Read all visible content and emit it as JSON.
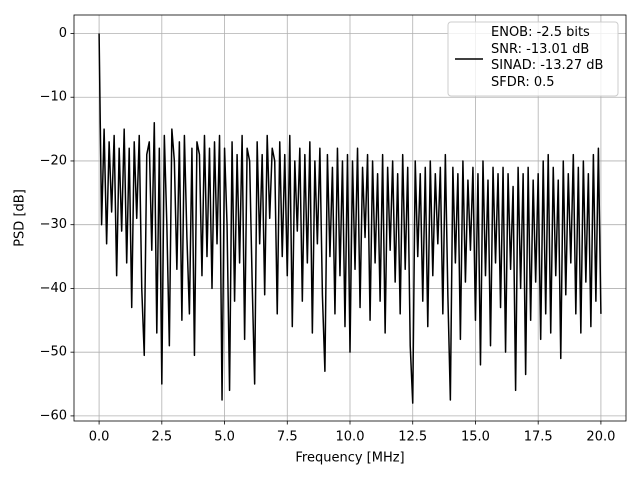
{
  "chart_data": {
    "type": "line",
    "xlabel": "Frequency [MHz]",
    "ylabel": "PSD [dB]",
    "x": [
      0,
      0.1,
      0.2,
      0.3,
      0.4,
      0.5,
      0.6,
      0.7,
      0.8,
      0.9,
      1,
      1.1,
      1.2,
      1.3,
      1.4,
      1.5,
      1.6,
      1.7,
      1.8,
      1.9,
      2,
      2.1,
      2.2,
      2.3,
      2.4,
      2.5,
      2.6,
      2.7,
      2.8,
      2.9,
      3,
      3.1,
      3.2,
      3.3,
      3.4,
      3.5,
      3.6,
      3.7,
      3.8,
      3.9,
      4,
      4.1,
      4.2,
      4.3,
      4.4,
      4.5,
      4.6,
      4.7,
      4.8,
      4.9,
      5,
      5.1,
      5.2,
      5.3,
      5.4,
      5.5,
      5.6,
      5.7,
      5.8,
      5.9,
      6,
      6.1,
      6.2,
      6.3,
      6.4,
      6.5,
      6.6,
      6.7,
      6.8,
      6.9,
      7,
      7.1,
      7.2,
      7.3,
      7.4,
      7.5,
      7.6,
      7.7,
      7.8,
      7.9,
      8,
      8.1,
      8.2,
      8.3,
      8.4,
      8.5,
      8.6,
      8.7,
      8.8,
      8.9,
      9,
      9.1,
      9.2,
      9.3,
      9.4,
      9.5,
      9.6,
      9.7,
      9.8,
      9.9,
      10,
      10.1,
      10.2,
      10.3,
      10.4,
      10.5,
      10.6,
      10.7,
      10.8,
      10.9,
      11,
      11.1,
      11.2,
      11.3,
      11.4,
      11.5,
      11.6,
      11.7,
      11.8,
      11.9,
      12,
      12.1,
      12.2,
      12.3,
      12.4,
      12.5,
      12.6,
      12.7,
      12.8,
      12.9,
      13,
      13.1,
      13.2,
      13.3,
      13.4,
      13.5,
      13.6,
      13.7,
      13.8,
      13.9,
      14,
      14.1,
      14.2,
      14.3,
      14.4,
      14.5,
      14.6,
      14.7,
      14.8,
      14.9,
      15,
      15.1,
      15.2,
      15.3,
      15.4,
      15.5,
      15.6,
      15.7,
      15.8,
      15.9,
      16,
      16.1,
      16.2,
      16.3,
      16.4,
      16.5,
      16.6,
      16.7,
      16.8,
      16.9,
      17,
      17.1,
      17.2,
      17.3,
      17.4,
      17.5,
      17.6,
      17.7,
      17.8,
      17.9,
      18,
      18.1,
      18.2,
      18.3,
      18.4,
      18.5,
      18.6,
      18.7,
      18.8,
      18.9,
      19,
      19.1,
      19.2,
      19.3,
      19.4,
      19.5,
      19.6,
      19.7,
      19.8,
      19.9,
      20
    ],
    "series": [
      {
        "name": "ENOB: -2.5 bits\nSNR: -13.01 dB\nSINAD: -13.27 dB\nSFDR: 0.5",
        "color": "#000000",
        "values": [
          0,
          -30,
          -15,
          -33,
          -17,
          -28,
          -16,
          -38,
          -18,
          -31,
          -15,
          -36,
          -18,
          -43,
          -17,
          -29,
          -16,
          -40,
          -50.5,
          -19,
          -17,
          -34,
          -14,
          -47,
          -18,
          -55,
          -16,
          -30,
          -49,
          -15,
          -20,
          -37,
          -17,
          -45,
          -16,
          -32,
          -44,
          -18,
          -50.5,
          -17,
          -19,
          -38,
          -16,
          -35,
          -18,
          -40,
          -17,
          -33,
          -16,
          -57.5,
          -18,
          -30,
          -56,
          -17,
          -42,
          -19,
          -36,
          -16,
          -48,
          -18,
          -20,
          -39,
          -55,
          -17,
          -33,
          -19,
          -41,
          -16,
          -29,
          -18,
          -20,
          -44,
          -17,
          -35,
          -19,
          -38,
          -16,
          -46,
          -20,
          -31,
          -18,
          -42,
          -19,
          -36,
          -17,
          -47,
          -20,
          -33,
          -18,
          -41,
          -53,
          -19,
          -35,
          -21,
          -44,
          -18,
          -38,
          -20,
          -46,
          -19,
          -50,
          -20,
          -37,
          -18,
          -43,
          -21,
          -32,
          -19,
          -45,
          -20,
          -36,
          -22,
          -42,
          -19,
          -47,
          -21,
          -34,
          -20,
          -39,
          -22,
          -44,
          -19,
          -37,
          -21,
          -49,
          -58,
          -20,
          -35,
          -22,
          -42,
          -21,
          -46,
          -20,
          -38,
          -22,
          -33,
          -21,
          -44,
          -19,
          -41,
          -57.5,
          -21,
          -36,
          -22,
          -48,
          -20,
          -39,
          -23,
          -34,
          -21,
          -45,
          -22,
          -52,
          -20,
          -38,
          -23,
          -49,
          -21,
          -36,
          -22,
          -43,
          -21,
          -50,
          -22,
          -37,
          -24,
          -56,
          -21,
          -40,
          -22,
          -53.5,
          -21,
          -45,
          -23,
          -39,
          -22,
          -48,
          -20,
          -44,
          -19,
          -47,
          -21,
          -38,
          -23,
          -51,
          -20,
          -41,
          -22,
          -36,
          -19,
          -44,
          -21,
          -47,
          -20,
          -39,
          -22,
          -46,
          -19,
          -42,
          -18,
          -44
        ]
      }
    ],
    "xlim": [
      -1,
      21
    ],
    "ylim": [
      -60.8,
      2.9
    ],
    "xticks": [
      {
        "value": 0,
        "label": "0.0"
      },
      2.5,
      {
        "value": 5,
        "label": "5.0"
      },
      7.5,
      {
        "value": 10,
        "label": "10.0"
      },
      12.5,
      {
        "value": 15,
        "label": "15.0"
      },
      17.5,
      {
        "value": 20,
        "label": "20.0"
      }
    ],
    "yticks": [
      {
        "value": -60,
        "label": "−60"
      },
      {
        "value": -50,
        "label": "−50"
      },
      {
        "value": -40,
        "label": "−40"
      },
      {
        "value": -30,
        "label": "−30"
      },
      {
        "value": -20,
        "label": "−20"
      },
      {
        "value": -10,
        "label": "−10"
      },
      0
    ],
    "grid": true,
    "legend": "upper right"
  }
}
